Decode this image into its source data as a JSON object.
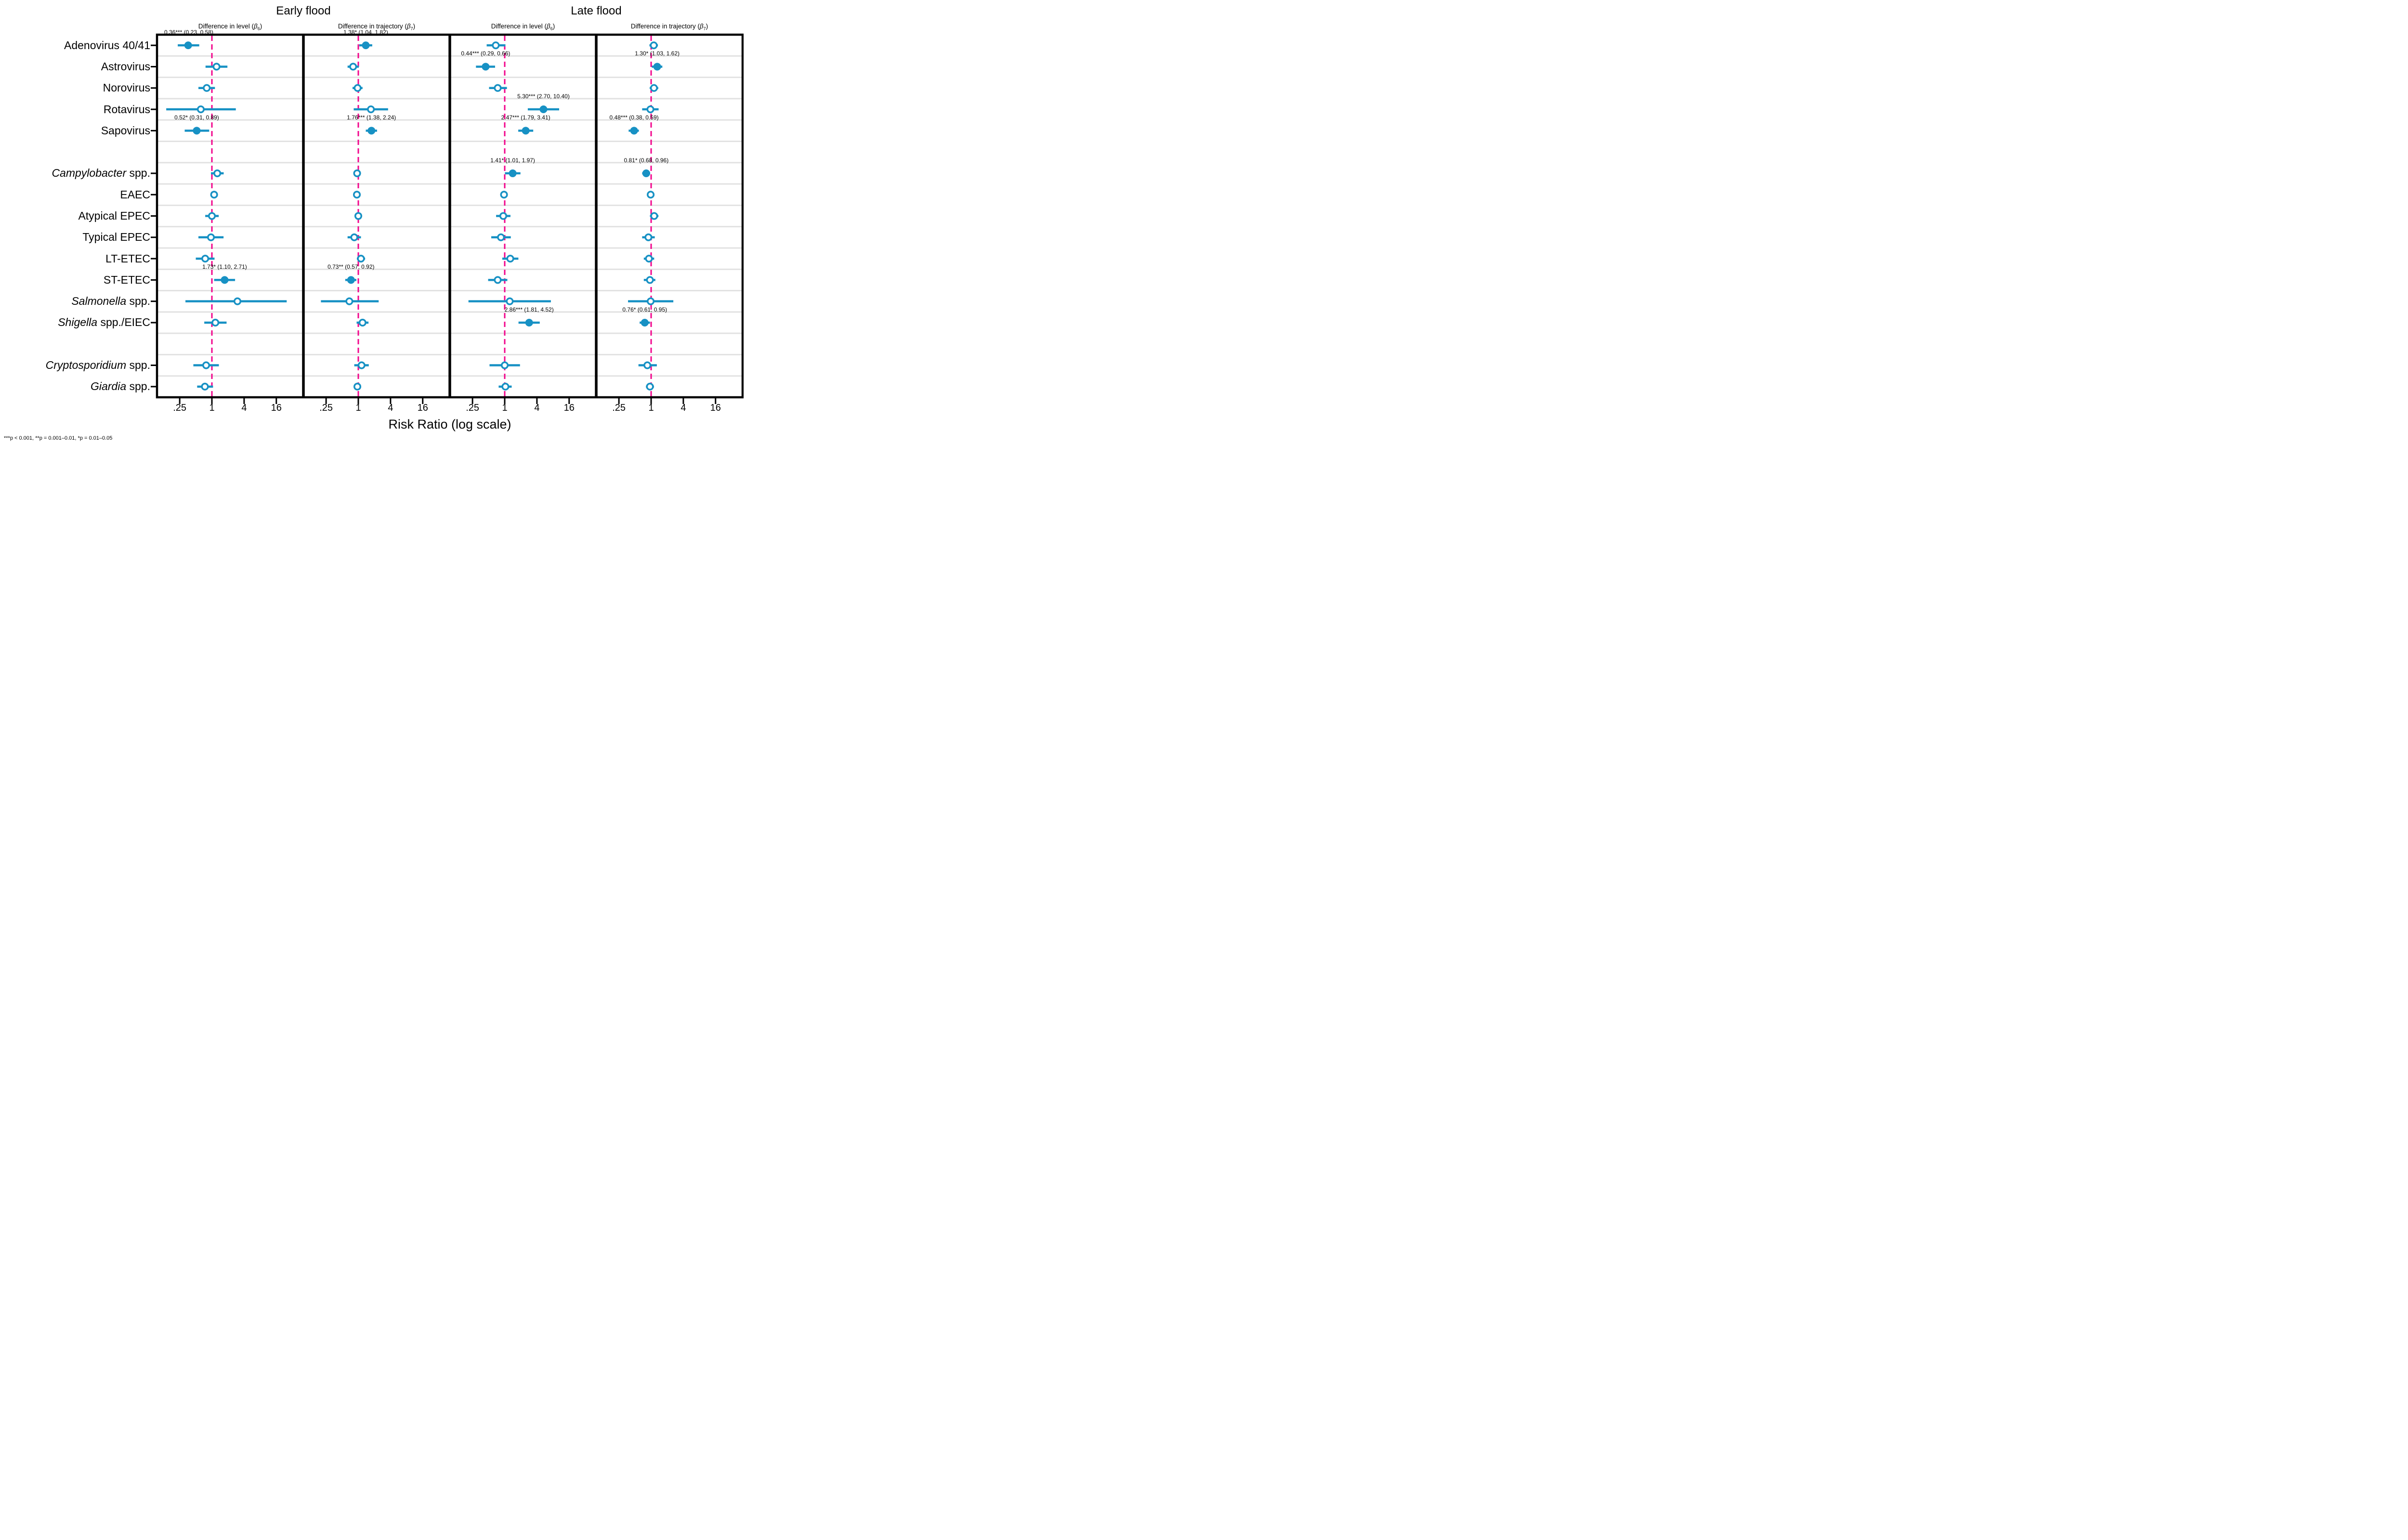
{
  "chart_data": {
    "type": "scatter",
    "variant": "forest-plot",
    "title_groups": [
      "Early flood",
      "Late flood"
    ],
    "xlabel": "Risk Ratio (log scale)",
    "footnote": "***p < 0.001, **p = 0.001–0.01, *p = 0.01–0.05",
    "x_scale": "log",
    "x_tick_values": [
      0.25,
      1,
      4,
      16
    ],
    "x_tick_labels": [
      ".25",
      "1",
      "4",
      "16"
    ],
    "reference_line": 1,
    "legend": "filled circle = significant estimate (labeled), open circle = non-significant",
    "colors": {
      "marker": "#1791c4",
      "reference": "#f2058c",
      "grid": "#e2e2e2",
      "border": "#000000",
      "text": "#000000",
      "background": "#ffffff"
    },
    "panels": [
      {
        "id": "early_level",
        "group": 0,
        "subtitle": "Difference in level",
        "beta": "β",
        "beta_sub": "6"
      },
      {
        "id": "early_traj",
        "group": 0,
        "subtitle": "Difference in trajectory",
        "beta": "β",
        "beta_sub": "7"
      },
      {
        "id": "late_level",
        "group": 1,
        "subtitle": "Difference in level",
        "beta": "β",
        "beta_sub": "6"
      },
      {
        "id": "late_traj",
        "group": 1,
        "subtitle": "Difference in trajectory",
        "beta": "β",
        "beta_sub": "7"
      }
    ],
    "rows": [
      {
        "id": "adenovirus",
        "italic": "",
        "plain": "Adenovirus 40/41"
      },
      {
        "id": "astrovirus",
        "italic": "",
        "plain": "Astrovirus"
      },
      {
        "id": "norovirus",
        "italic": "",
        "plain": "Norovirus"
      },
      {
        "id": "rotavirus",
        "italic": "",
        "plain": "Rotavirus"
      },
      {
        "id": "sapovirus",
        "italic": "",
        "plain": "Sapovirus"
      },
      {
        "id": "spacer1",
        "spacer": true
      },
      {
        "id": "campylobacter",
        "italic": "Campylobacter",
        "plain": " spp."
      },
      {
        "id": "eaec",
        "italic": "",
        "plain": "EAEC"
      },
      {
        "id": "atypical_epec",
        "italic": "",
        "plain": "Atypical EPEC"
      },
      {
        "id": "typical_epec",
        "italic": "",
        "plain": "Typical EPEC"
      },
      {
        "id": "lt_etec",
        "italic": "",
        "plain": "LT-ETEC"
      },
      {
        "id": "st_etec",
        "italic": "",
        "plain": "ST-ETEC"
      },
      {
        "id": "salmonella",
        "italic": "Salmonella",
        "plain": " spp."
      },
      {
        "id": "shigella",
        "italic": "Shigella",
        "plain": " spp./EIEC"
      },
      {
        "id": "spacer2",
        "spacer": true
      },
      {
        "id": "cryptosporidium",
        "italic": "Cryptosporidium",
        "plain": " spp."
      },
      {
        "id": "giardia",
        "italic": "Giardia",
        "plain": " spp."
      }
    ],
    "estimates": {
      "early_level": {
        "adenovirus": {
          "est": 0.36,
          "lo": 0.23,
          "hi": 0.58,
          "sig": "***",
          "label": "0.36*** (0.23, 0.58)"
        },
        "astrovirus": {
          "est": 1.22,
          "lo": 0.76,
          "hi": 1.95,
          "sig": "",
          "label": ""
        },
        "norovirus": {
          "est": 0.8,
          "lo": 0.56,
          "hi": 1.14,
          "sig": "",
          "label": ""
        },
        "rotavirus": {
          "est": 0.62,
          "lo": 0.14,
          "hi": 2.8,
          "sig": "",
          "label": ""
        },
        "sapovirus": {
          "est": 0.52,
          "lo": 0.31,
          "hi": 0.89,
          "sig": "*",
          "label": "0.52* (0.31, 0.89)"
        },
        "campylobacter": {
          "est": 1.26,
          "lo": 0.96,
          "hi": 1.66,
          "sig": "",
          "label": ""
        },
        "eaec": {
          "est": 1.1,
          "lo": 0.98,
          "hi": 1.25,
          "sig": "",
          "label": ""
        },
        "atypical_epec": {
          "est": 1.0,
          "lo": 0.75,
          "hi": 1.34,
          "sig": "",
          "label": ""
        },
        "typical_epec": {
          "est": 0.96,
          "lo": 0.56,
          "hi": 1.65,
          "sig": "",
          "label": ""
        },
        "lt_etec": {
          "est": 0.75,
          "lo": 0.5,
          "hi": 1.12,
          "sig": "",
          "label": ""
        },
        "st_etec": {
          "est": 1.73,
          "lo": 1.1,
          "hi": 2.71,
          "sig": "*",
          "label": "1.73* (1.10, 2.71)"
        },
        "salmonella": {
          "est": 3.0,
          "lo": 0.32,
          "hi": 25.0,
          "sig": "",
          "label": ""
        },
        "shigella": {
          "est": 1.16,
          "lo": 0.72,
          "hi": 1.88,
          "sig": "",
          "label": ""
        },
        "cryptosporidium": {
          "est": 0.78,
          "lo": 0.45,
          "hi": 1.35,
          "sig": "",
          "label": ""
        },
        "giardia": {
          "est": 0.74,
          "lo": 0.53,
          "hi": 1.05,
          "sig": "",
          "label": ""
        }
      },
      "early_traj": {
        "adenovirus": {
          "est": 1.38,
          "lo": 1.04,
          "hi": 1.82,
          "sig": "*",
          "label": "1.38* (1.04, 1.82)"
        },
        "astrovirus": {
          "est": 0.8,
          "lo": 0.63,
          "hi": 1.02,
          "sig": "",
          "label": ""
        },
        "norovirus": {
          "est": 0.97,
          "lo": 0.78,
          "hi": 1.2,
          "sig": "",
          "label": ""
        },
        "rotavirus": {
          "est": 1.72,
          "lo": 0.82,
          "hi": 3.6,
          "sig": "",
          "label": ""
        },
        "sapovirus": {
          "est": 1.76,
          "lo": 1.38,
          "hi": 2.24,
          "sig": "***",
          "label": "1.76*** (1.38, 2.24)"
        },
        "campylobacter": {
          "est": 0.95,
          "lo": 0.86,
          "hi": 1.05,
          "sig": "",
          "label": ""
        },
        "eaec": {
          "est": 0.94,
          "lo": 0.87,
          "hi": 1.02,
          "sig": "",
          "label": ""
        },
        "atypical_epec": {
          "est": 1.0,
          "lo": 0.92,
          "hi": 1.09,
          "sig": "",
          "label": ""
        },
        "typical_epec": {
          "est": 0.84,
          "lo": 0.63,
          "hi": 1.12,
          "sig": "",
          "label": ""
        },
        "lt_etec": {
          "est": 1.12,
          "lo": 0.94,
          "hi": 1.34,
          "sig": "",
          "label": ""
        },
        "st_etec": {
          "est": 0.73,
          "lo": 0.57,
          "hi": 0.92,
          "sig": "**",
          "label": "0.73** (0.57, 0.92)"
        },
        "salmonella": {
          "est": 0.68,
          "lo": 0.2,
          "hi": 2.4,
          "sig": "",
          "label": ""
        },
        "shigella": {
          "est": 1.2,
          "lo": 0.93,
          "hi": 1.55,
          "sig": "",
          "label": ""
        },
        "cryptosporidium": {
          "est": 1.15,
          "lo": 0.84,
          "hi": 1.57,
          "sig": "",
          "label": ""
        },
        "giardia": {
          "est": 0.96,
          "lo": 0.88,
          "hi": 1.05,
          "sig": "",
          "label": ""
        }
      },
      "late_level": {
        "adenovirus": {
          "est": 0.68,
          "lo": 0.46,
          "hi": 1.03,
          "sig": "",
          "label": ""
        },
        "astrovirus": {
          "est": 0.44,
          "lo": 0.29,
          "hi": 0.66,
          "sig": "***",
          "label": "0.44*** (0.29, 0.66)"
        },
        "norovirus": {
          "est": 0.74,
          "lo": 0.51,
          "hi": 1.1,
          "sig": "",
          "label": ""
        },
        "rotavirus": {
          "est": 5.3,
          "lo": 2.7,
          "hi": 10.4,
          "sig": "***",
          "label": "5.30*** (2.70, 10.40)"
        },
        "sapovirus": {
          "est": 2.47,
          "lo": 1.79,
          "hi": 3.41,
          "sig": "***",
          "label": "2.47*** (1.79, 3.41)"
        },
        "campylobacter": {
          "est": 1.41,
          "lo": 1.01,
          "hi": 1.97,
          "sig": "*",
          "label": "1.41* (1.01, 1.97)"
        },
        "eaec": {
          "est": 0.97,
          "lo": 0.9,
          "hi": 1.05,
          "sig": "",
          "label": ""
        },
        "atypical_epec": {
          "est": 0.94,
          "lo": 0.69,
          "hi": 1.28,
          "sig": "",
          "label": ""
        },
        "typical_epec": {
          "est": 0.85,
          "lo": 0.56,
          "hi": 1.3,
          "sig": "",
          "label": ""
        },
        "lt_etec": {
          "est": 1.27,
          "lo": 0.9,
          "hi": 1.8,
          "sig": "",
          "label": ""
        },
        "st_etec": {
          "est": 0.74,
          "lo": 0.49,
          "hi": 1.12,
          "sig": "",
          "label": ""
        },
        "salmonella": {
          "est": 1.24,
          "lo": 0.21,
          "hi": 7.3,
          "sig": "",
          "label": ""
        },
        "shigella": {
          "est": 2.86,
          "lo": 1.81,
          "hi": 4.52,
          "sig": "***",
          "label": "2.86*** (1.81, 4.52)"
        },
        "cryptosporidium": {
          "est": 1.0,
          "lo": 0.52,
          "hi": 1.93,
          "sig": "",
          "label": ""
        },
        "giardia": {
          "est": 1.03,
          "lo": 0.77,
          "hi": 1.35,
          "sig": "",
          "label": ""
        }
      },
      "late_traj": {
        "adenovirus": {
          "est": 1.12,
          "lo": 0.93,
          "hi": 1.34,
          "sig": "",
          "label": ""
        },
        "astrovirus": {
          "est": 1.3,
          "lo": 1.03,
          "hi": 1.62,
          "sig": "*",
          "label": "1.30* (1.03, 1.62)"
        },
        "norovirus": {
          "est": 1.13,
          "lo": 0.94,
          "hi": 1.36,
          "sig": "",
          "label": ""
        },
        "rotavirus": {
          "est": 0.97,
          "lo": 0.68,
          "hi": 1.38,
          "sig": "",
          "label": ""
        },
        "sapovirus": {
          "est": 0.48,
          "lo": 0.38,
          "hi": 0.59,
          "sig": "***",
          "label": "0.48*** (0.38, 0.59)"
        },
        "campylobacter": {
          "est": 0.81,
          "lo": 0.68,
          "hi": 0.96,
          "sig": "*",
          "label": "0.81* (0.68, 0.96)"
        },
        "eaec": {
          "est": 0.98,
          "lo": 0.92,
          "hi": 1.05,
          "sig": "",
          "label": ""
        },
        "atypical_epec": {
          "est": 1.14,
          "lo": 0.95,
          "hi": 1.37,
          "sig": "",
          "label": ""
        },
        "typical_epec": {
          "est": 0.89,
          "lo": 0.68,
          "hi": 1.17,
          "sig": "",
          "label": ""
        },
        "lt_etec": {
          "est": 0.91,
          "lo": 0.73,
          "hi": 1.14,
          "sig": "",
          "label": ""
        },
        "st_etec": {
          "est": 0.95,
          "lo": 0.73,
          "hi": 1.2,
          "sig": "",
          "label": ""
        },
        "salmonella": {
          "est": 0.98,
          "lo": 0.37,
          "hi": 2.6,
          "sig": "",
          "label": ""
        },
        "shigella": {
          "est": 0.76,
          "lo": 0.61,
          "hi": 0.95,
          "sig": "*",
          "label": "0.76* (0.61, 0.95)"
        },
        "cryptosporidium": {
          "est": 0.85,
          "lo": 0.58,
          "hi": 1.28,
          "sig": "",
          "label": ""
        },
        "giardia": {
          "est": 0.95,
          "lo": 0.8,
          "hi": 1.13,
          "sig": "",
          "label": ""
        }
      }
    }
  }
}
